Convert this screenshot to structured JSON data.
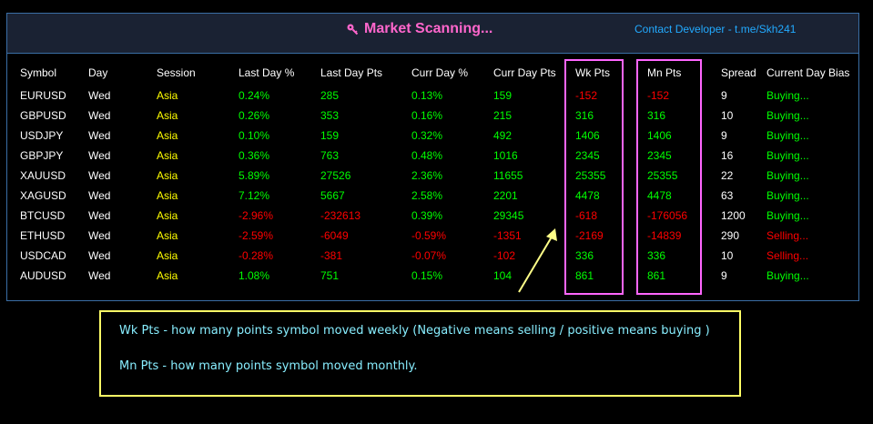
{
  "header": {
    "title": "Market Scanning...",
    "contact": "Contact Developer - t.me/Skh241",
    "title_color": "#ff66cc",
    "contact_color": "#22aaff",
    "title_icon": "key-icon"
  },
  "table": {
    "columns": [
      "Symbol",
      "Day",
      "Session",
      "Last Day %",
      "Last Day Pts",
      "Curr Day %",
      "Curr Day Pts",
      "Wk Pts",
      "Mn Pts",
      "Spread",
      "Current Day Bias"
    ],
    "highlighted_columns": [
      "Wk Pts",
      "Mn Pts"
    ],
    "rows": [
      [
        "EURUSD",
        "Wed",
        "Asia",
        "0.24%",
        "285",
        "0.13%",
        "159",
        "-152",
        "-152",
        "9",
        "Buying..."
      ],
      [
        "GBPUSD",
        "Wed",
        "Asia",
        "0.26%",
        "353",
        "0.16%",
        "215",
        "316",
        "316",
        "10",
        "Buying..."
      ],
      [
        "USDJPY",
        "Wed",
        "Asia",
        "0.10%",
        "159",
        "0.32%",
        "492",
        "1406",
        "1406",
        "9",
        "Buying..."
      ],
      [
        "GBPJPY",
        "Wed",
        "Asia",
        "0.36%",
        "763",
        "0.48%",
        "1016",
        "2345",
        "2345",
        "16",
        "Buying..."
      ],
      [
        "XAUUSD",
        "Wed",
        "Asia",
        "5.89%",
        "27526",
        "2.36%",
        "11655",
        "25355",
        "25355",
        "22",
        "Buying..."
      ],
      [
        "XAGUSD",
        "Wed",
        "Asia",
        "7.12%",
        "5667",
        "2.58%",
        "2201",
        "4478",
        "4478",
        "63",
        "Buying..."
      ],
      [
        "BTCUSD",
        "Wed",
        "Asia",
        "-2.96%",
        "-232613",
        "0.39%",
        "29345",
        "-618",
        "-176056",
        "1200",
        "Buying..."
      ],
      [
        "ETHUSD",
        "Wed",
        "Asia",
        "-2.59%",
        "-6049",
        "-0.59%",
        "-1351",
        "-2169",
        "-14839",
        "290",
        "Selling..."
      ],
      [
        "USDCAD",
        "Wed",
        "Asia",
        "-0.28%",
        "-381",
        "-0.07%",
        "-102",
        "336",
        "336",
        "10",
        "Selling..."
      ],
      [
        "AUDUSD",
        "Wed",
        "Asia",
        "1.08%",
        "751",
        "0.15%",
        "104",
        "861",
        "861",
        "9",
        "Buying..."
      ]
    ]
  },
  "legend": {
    "line1": "Wk Pts - how many points symbol moved weekly (Negative means selling / positive means buying )",
    "line2": "Mn Pts - how many points symbol moved monthly."
  },
  "colors": {
    "positive": "#00ff00",
    "negative": "#ff0000",
    "session": "#ffff00",
    "highlight_box": "#ff66ff",
    "legend_border": "#ffff66",
    "legend_text": "#88eeff",
    "arrow": "#ffff88"
  }
}
